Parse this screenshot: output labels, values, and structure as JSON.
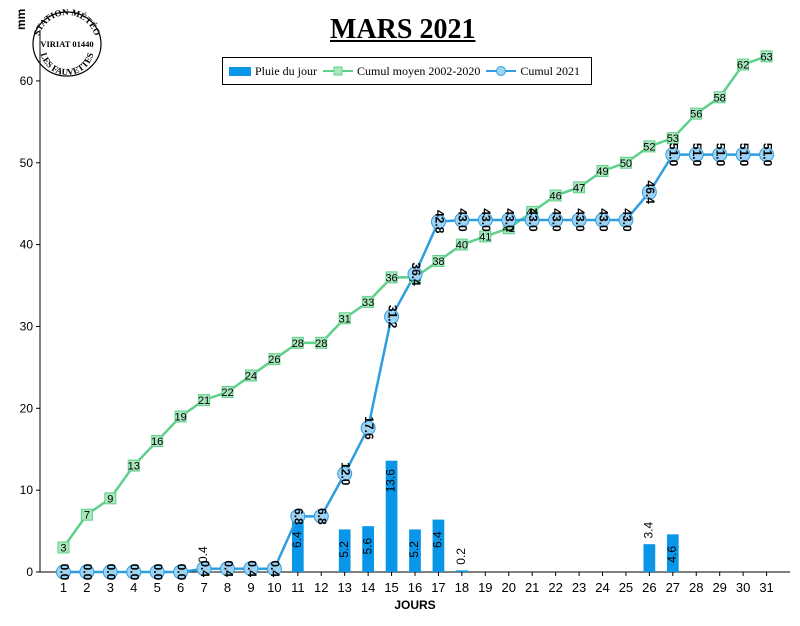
{
  "chart_data": {
    "type": "bar+line",
    "title": "MARS 2021",
    "xlabel": "JOURS",
    "ylabel": "mm",
    "ylim": [
      0,
      65
    ],
    "yticks": [
      0,
      10,
      20,
      30,
      40,
      50,
      60
    ],
    "categories": [
      "1",
      "2",
      "3",
      "4",
      "5",
      "6",
      "7",
      "8",
      "9",
      "10",
      "11",
      "12",
      "13",
      "14",
      "15",
      "16",
      "17",
      "18",
      "19",
      "20",
      "21",
      "22",
      "23",
      "24",
      "25",
      "26",
      "27",
      "28",
      "29",
      "30",
      "31"
    ],
    "series": [
      {
        "name": "Pluie du jour",
        "kind": "bar",
        "color": "#0a96e8",
        "values": [
          0,
          0,
          0,
          0,
          0,
          0,
          0.4,
          0,
          0,
          0,
          6.4,
          0,
          5.2,
          5.6,
          13.6,
          5.2,
          6.4,
          0.2,
          0,
          0,
          0,
          0,
          0,
          0,
          0,
          3.4,
          4.6,
          0,
          0,
          0,
          0
        ],
        "labels": [
          "",
          "",
          "",
          "",
          "",
          "",
          "0.4",
          "",
          "",
          "",
          "6.4",
          "",
          "5.2",
          "5.6",
          "13.6",
          "5.2",
          "6.4",
          "0.2",
          "",
          "",
          "",
          "",
          "",
          "",
          "",
          "3.4",
          "4.6",
          "",
          "",
          "",
          ""
        ]
      },
      {
        "name": "Cumul moyen 2002-2020",
        "kind": "line",
        "marker": "square",
        "color": "#5fd08a",
        "values": [
          3,
          7,
          9,
          13,
          16,
          19,
          21,
          22,
          24,
          26,
          28,
          28,
          31,
          33,
          36,
          36,
          38,
          40,
          41,
          42,
          44,
          46,
          47,
          49,
          50,
          52,
          53,
          56,
          58,
          62,
          63
        ],
        "labels": [
          "3",
          "7",
          "9",
          "13",
          "16",
          "19",
          "21",
          "22",
          "24",
          "26",
          "28",
          "28",
          "31",
          "33",
          "36",
          "36",
          "38",
          "40",
          "41",
          "42",
          "44",
          "46",
          "47",
          "49",
          "50",
          "52",
          "53",
          "56",
          "58",
          "62",
          "63"
        ]
      },
      {
        "name": "Cumul 2021",
        "kind": "line",
        "marker": "circle",
        "color": "#2e9ee0",
        "values": [
          0,
          0,
          0,
          0,
          0,
          0,
          0.4,
          0.4,
          0.4,
          0.4,
          6.8,
          6.8,
          12.0,
          17.6,
          31.2,
          36.4,
          42.8,
          43.0,
          43.0,
          43.0,
          43.0,
          43.0,
          43.0,
          43.0,
          43.0,
          46.4,
          51.0,
          51.0,
          51.0,
          51.0,
          51.0
        ],
        "labels": [
          "0.0",
          "0.0",
          "0.0",
          "0.0",
          "0.0",
          "0.0",
          "0.4",
          "0.4",
          "0.4",
          "0.4",
          "6.8",
          "6.8",
          "12.0",
          "17.6",
          "31.2",
          "36.4",
          "42.8",
          "43.0",
          "43.0",
          "43.0",
          "43.0",
          "43.0",
          "43.0",
          "43.0",
          "43.0",
          "46.4",
          "51.0",
          "51.0",
          "51.0",
          "51.0",
          "51.0"
        ]
      }
    ],
    "legend": "top",
    "grid": false
  },
  "stamp": {
    "top_text": "STATION MÉTÉO",
    "middle_text": "VIRIAT 01440",
    "bottom_text": "LES FAUVETTES"
  }
}
